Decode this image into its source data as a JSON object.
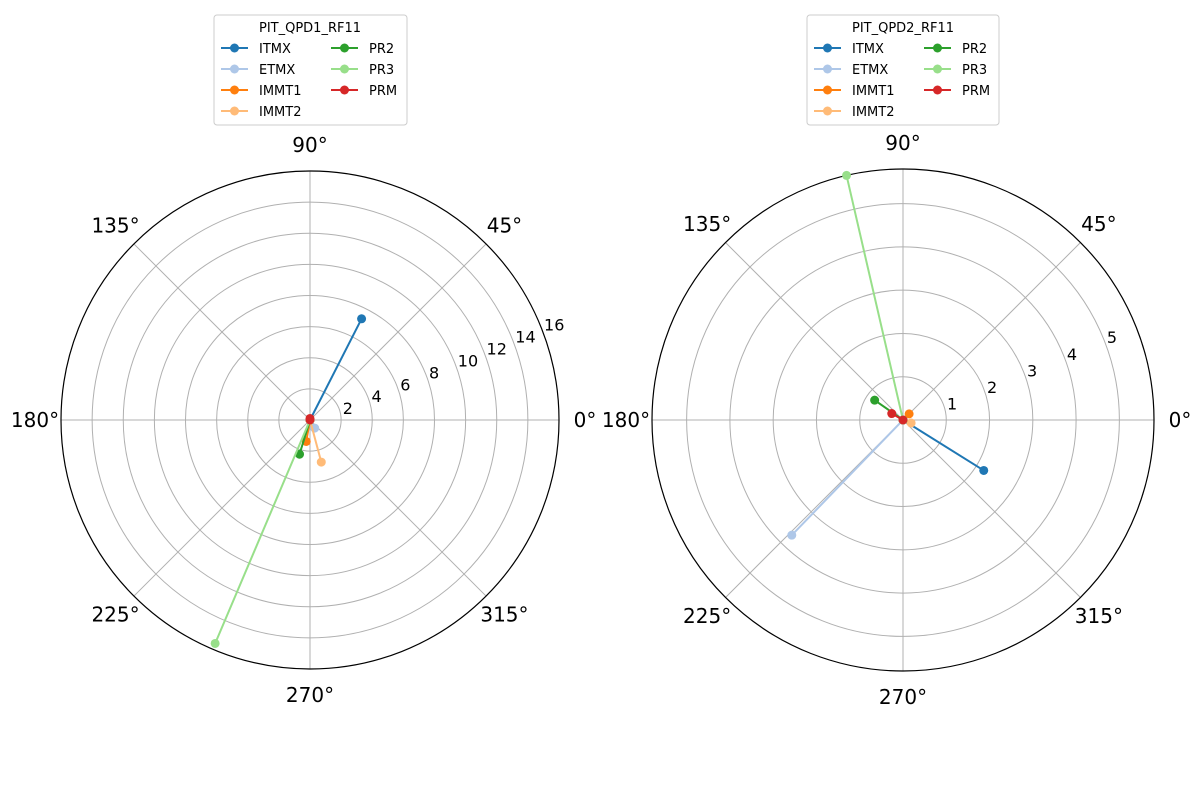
{
  "chart_data": [
    {
      "type": "polar-line",
      "title": "",
      "legend_title": "PIT_QPD1_RF11",
      "legend_placement": "top-center",
      "legend_columns": 2,
      "grid": true,
      "angle_unit": "degrees",
      "angle_ticks": [
        "0°",
        "45°",
        "90°",
        "135°",
        "180°",
        "225°",
        "270°",
        "315°"
      ],
      "radial_ticks": [
        2,
        4,
        6,
        8,
        10,
        12,
        14,
        16
      ],
      "rlim": [
        0,
        16
      ],
      "series": [
        {
          "name": "ITMX",
          "color": "#1f77b4",
          "angle_deg": 63,
          "radius": 7.3
        },
        {
          "name": "ETMX",
          "color": "#aec7e8",
          "angle_deg": 300,
          "radius": 0.6
        },
        {
          "name": "IMMT1",
          "color": "#ff7f0e",
          "angle_deg": 260,
          "radius": 1.4
        },
        {
          "name": "IMMT2",
          "color": "#ffbb78",
          "angle_deg": 285,
          "radius": 2.8
        },
        {
          "name": "PR2",
          "color": "#2ca02c",
          "angle_deg": 253,
          "radius": 2.3
        },
        {
          "name": "PR3",
          "color": "#98df8a",
          "angle_deg": 247,
          "radius": 15.6
        },
        {
          "name": "PRM",
          "color": "#d62728",
          "angle_deg": 90,
          "radius": 0.1
        }
      ]
    },
    {
      "type": "polar-line",
      "title": "",
      "legend_title": "PIT_QPD2_RF11",
      "legend_placement": "top-center",
      "legend_columns": 2,
      "grid": true,
      "angle_unit": "degrees",
      "angle_ticks": [
        "0°",
        "45°",
        "90°",
        "135°",
        "180°",
        "225°",
        "270°",
        "315°"
      ],
      "radial_ticks": [
        1,
        2,
        3,
        4,
        5
      ],
      "rlim": [
        0,
        5.8
      ],
      "series": [
        {
          "name": "ITMX",
          "color": "#1f77b4",
          "angle_deg": 328,
          "radius": 2.2
        },
        {
          "name": "ETMX",
          "color": "#aec7e8",
          "angle_deg": 226,
          "radius": 3.7
        },
        {
          "name": "IMMT1",
          "color": "#ff7f0e",
          "angle_deg": 45,
          "radius": 0.2
        },
        {
          "name": "IMMT2",
          "color": "#ffbb78",
          "angle_deg": 340,
          "radius": 0.2
        },
        {
          "name": "PR2",
          "color": "#2ca02c",
          "angle_deg": 145,
          "radius": 0.8
        },
        {
          "name": "PR3",
          "color": "#98df8a",
          "angle_deg": 103,
          "radius": 5.8
        },
        {
          "name": "PRM",
          "color": "#d62728",
          "angle_deg": 150,
          "radius": 0.3
        }
      ]
    }
  ]
}
